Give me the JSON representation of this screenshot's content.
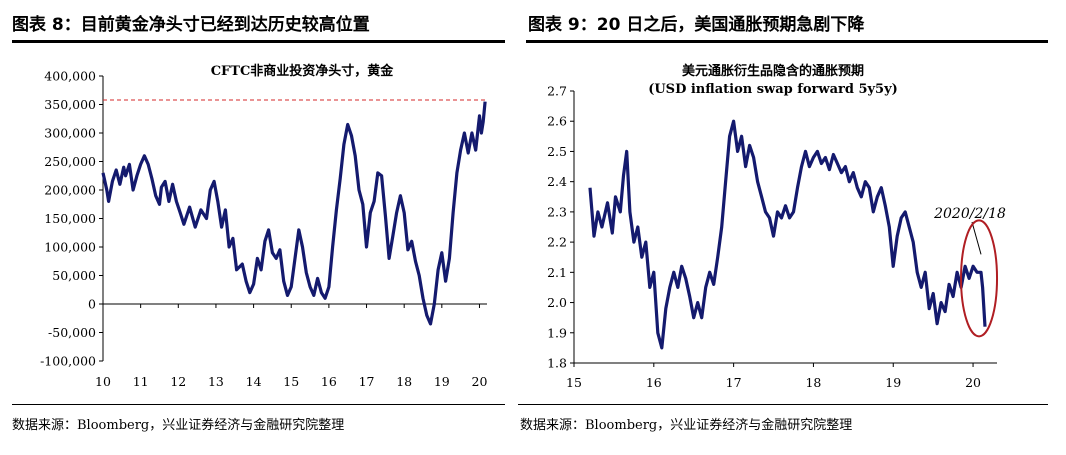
{
  "left": {
    "figure_title": "图表 8：目前黄金净头寸已经到达历史较高位置",
    "source": "数据来源：Bloomberg，兴业证券经济与金融研究院整理"
  },
  "right": {
    "figure_title": "图表 9：20 日之后，美国通胀预期急剧下降",
    "source": "数据来源：Bloomberg，兴业证券经济与金融研究院整理"
  },
  "colors": {
    "line": "#141a6e",
    "reference": "#d62728",
    "ellipse": "#b01e23",
    "axis": "#000000"
  },
  "chart_data": [
    {
      "type": "line",
      "title": "CFTC非商业投资净头寸，黄金",
      "xlabel": "",
      "ylabel": "",
      "ylim": [
        -100000,
        400000
      ],
      "yticks": [
        400000,
        350000,
        300000,
        250000,
        200000,
        150000,
        100000,
        50000,
        0,
        -50000,
        -100000
      ],
      "ytick_labels": [
        "400,000",
        "350,000",
        "300,000",
        "250,000",
        "200,000",
        "150,000",
        "100,000",
        "50,000",
        "0",
        "-50,000",
        "-100,000"
      ],
      "xlim": [
        10,
        20.2
      ],
      "xticks": [
        10,
        11,
        12,
        13,
        14,
        15,
        16,
        17,
        18,
        19,
        20
      ],
      "xtick_labels": [
        "10",
        "11",
        "12",
        "13",
        "14",
        "15",
        "16",
        "17",
        "18",
        "19",
        "20"
      ],
      "reference_line": {
        "y": 358000,
        "style": "dashed"
      },
      "grid": false,
      "legend": "none",
      "series": [
        {
          "points": [
            [
              10.0,
              230000
            ],
            [
              10.1,
              200000
            ],
            [
              10.15,
              180000
            ],
            [
              10.25,
              215000
            ],
            [
              10.35,
              235000
            ],
            [
              10.45,
              210000
            ],
            [
              10.55,
              240000
            ],
            [
              10.6,
              225000
            ],
            [
              10.7,
              245000
            ],
            [
              10.8,
              200000
            ],
            [
              10.9,
              225000
            ],
            [
              11.0,
              245000
            ],
            [
              11.1,
              260000
            ],
            [
              11.2,
              245000
            ],
            [
              11.3,
              220000
            ],
            [
              11.4,
              190000
            ],
            [
              11.5,
              175000
            ],
            [
              11.55,
              205000
            ],
            [
              11.65,
              215000
            ],
            [
              11.75,
              180000
            ],
            [
              11.85,
              210000
            ],
            [
              11.95,
              180000
            ],
            [
              12.05,
              160000
            ],
            [
              12.15,
              140000
            ],
            [
              12.3,
              170000
            ],
            [
              12.45,
              135000
            ],
            [
              12.6,
              165000
            ],
            [
              12.75,
              150000
            ],
            [
              12.85,
              200000
            ],
            [
              12.95,
              215000
            ],
            [
              13.05,
              180000
            ],
            [
              13.15,
              135000
            ],
            [
              13.25,
              165000
            ],
            [
              13.35,
              100000
            ],
            [
              13.45,
              115000
            ],
            [
              13.55,
              60000
            ],
            [
              13.7,
              70000
            ],
            [
              13.8,
              40000
            ],
            [
              13.9,
              20000
            ],
            [
              14.0,
              35000
            ],
            [
              14.1,
              80000
            ],
            [
              14.2,
              60000
            ],
            [
              14.3,
              110000
            ],
            [
              14.4,
              130000
            ],
            [
              14.5,
              90000
            ],
            [
              14.6,
              80000
            ],
            [
              14.7,
              95000
            ],
            [
              14.8,
              40000
            ],
            [
              14.9,
              15000
            ],
            [
              15.0,
              30000
            ],
            [
              15.1,
              80000
            ],
            [
              15.2,
              130000
            ],
            [
              15.3,
              100000
            ],
            [
              15.4,
              55000
            ],
            [
              15.5,
              30000
            ],
            [
              15.6,
              15000
            ],
            [
              15.7,
              45000
            ],
            [
              15.8,
              20000
            ],
            [
              15.9,
              10000
            ],
            [
              16.0,
              30000
            ],
            [
              16.1,
              100000
            ],
            [
              16.2,
              165000
            ],
            [
              16.3,
              220000
            ],
            [
              16.4,
              280000
            ],
            [
              16.5,
              315000
            ],
            [
              16.6,
              295000
            ],
            [
              16.7,
              260000
            ],
            [
              16.8,
              200000
            ],
            [
              16.9,
              175000
            ],
            [
              17.0,
              100000
            ],
            [
              17.1,
              160000
            ],
            [
              17.2,
              180000
            ],
            [
              17.3,
              230000
            ],
            [
              17.4,
              225000
            ],
            [
              17.5,
              155000
            ],
            [
              17.6,
              80000
            ],
            [
              17.7,
              120000
            ],
            [
              17.8,
              160000
            ],
            [
              17.9,
              190000
            ],
            [
              18.0,
              160000
            ],
            [
              18.1,
              95000
            ],
            [
              18.2,
              110000
            ],
            [
              18.3,
              75000
            ],
            [
              18.4,
              50000
            ],
            [
              18.5,
              10000
            ],
            [
              18.6,
              -20000
            ],
            [
              18.7,
              -35000
            ],
            [
              18.8,
              0
            ],
            [
              18.9,
              60000
            ],
            [
              19.0,
              90000
            ],
            [
              19.1,
              40000
            ],
            [
              19.2,
              80000
            ],
            [
              19.3,
              160000
            ],
            [
              19.4,
              230000
            ],
            [
              19.5,
              270000
            ],
            [
              19.6,
              300000
            ],
            [
              19.7,
              265000
            ],
            [
              19.8,
              300000
            ],
            [
              19.9,
              270000
            ],
            [
              20.0,
              330000
            ],
            [
              20.05,
              300000
            ],
            [
              20.1,
              320000
            ],
            [
              20.15,
              355000
            ]
          ]
        }
      ]
    },
    {
      "type": "line",
      "title": "美元通胀衍生品隐含的通胀预期",
      "subtitle": "(USD inflation swap forward 5y5y)",
      "xlabel": "",
      "ylabel": "",
      "ylim": [
        1.8,
        2.7
      ],
      "yticks": [
        2.7,
        2.6,
        2.5,
        2.4,
        2.3,
        2.2,
        2.1,
        2.0,
        1.9,
        1.8
      ],
      "ytick_labels": [
        "2.7",
        "2.6",
        "2.5",
        "2.4",
        "2.3",
        "2.2",
        "2.1",
        "2.0",
        "1.9",
        "1.8"
      ],
      "xlim": [
        15.0,
        20.3
      ],
      "xticks": [
        15,
        16,
        17,
        18,
        19,
        20
      ],
      "xtick_labels": [
        "15",
        "16",
        "17",
        "18",
        "19",
        "20"
      ],
      "annotation": {
        "text": "2020/2/18",
        "x": 20.15,
        "y": 2.1
      },
      "grid": false,
      "legend": "none",
      "series": [
        {
          "points": [
            [
              15.2,
              2.38
            ],
            [
              15.25,
              2.22
            ],
            [
              15.3,
              2.3
            ],
            [
              15.35,
              2.25
            ],
            [
              15.42,
              2.33
            ],
            [
              15.48,
              2.23
            ],
            [
              15.52,
              2.35
            ],
            [
              15.58,
              2.3
            ],
            [
              15.62,
              2.42
            ],
            [
              15.66,
              2.5
            ],
            [
              15.7,
              2.3
            ],
            [
              15.75,
              2.2
            ],
            [
              15.8,
              2.25
            ],
            [
              15.85,
              2.15
            ],
            [
              15.9,
              2.2
            ],
            [
              15.95,
              2.05
            ],
            [
              16.0,
              2.1
            ],
            [
              16.05,
              1.9
            ],
            [
              16.1,
              1.85
            ],
            [
              16.15,
              1.98
            ],
            [
              16.2,
              2.05
            ],
            [
              16.25,
              2.1
            ],
            [
              16.3,
              2.05
            ],
            [
              16.35,
              2.12
            ],
            [
              16.4,
              2.08
            ],
            [
              16.45,
              2.02
            ],
            [
              16.5,
              1.95
            ],
            [
              16.55,
              2.0
            ],
            [
              16.6,
              1.95
            ],
            [
              16.65,
              2.05
            ],
            [
              16.7,
              2.1
            ],
            [
              16.75,
              2.06
            ],
            [
              16.8,
              2.15
            ],
            [
              16.85,
              2.25
            ],
            [
              16.9,
              2.4
            ],
            [
              16.95,
              2.55
            ],
            [
              17.0,
              2.6
            ],
            [
              17.05,
              2.5
            ],
            [
              17.1,
              2.55
            ],
            [
              17.15,
              2.45
            ],
            [
              17.2,
              2.52
            ],
            [
              17.25,
              2.48
            ],
            [
              17.3,
              2.4
            ],
            [
              17.35,
              2.35
            ],
            [
              17.4,
              2.3
            ],
            [
              17.45,
              2.28
            ],
            [
              17.5,
              2.22
            ],
            [
              17.55,
              2.3
            ],
            [
              17.6,
              2.28
            ],
            [
              17.65,
              2.32
            ],
            [
              17.7,
              2.28
            ],
            [
              17.75,
              2.3
            ],
            [
              17.8,
              2.38
            ],
            [
              17.85,
              2.45
            ],
            [
              17.9,
              2.5
            ],
            [
              17.95,
              2.45
            ],
            [
              18.0,
              2.48
            ],
            [
              18.05,
              2.5
            ],
            [
              18.1,
              2.46
            ],
            [
              18.15,
              2.48
            ],
            [
              18.2,
              2.44
            ],
            [
              18.25,
              2.49
            ],
            [
              18.3,
              2.46
            ],
            [
              18.35,
              2.43
            ],
            [
              18.4,
              2.45
            ],
            [
              18.45,
              2.4
            ],
            [
              18.5,
              2.43
            ],
            [
              18.55,
              2.38
            ],
            [
              18.6,
              2.35
            ],
            [
              18.65,
              2.4
            ],
            [
              18.7,
              2.38
            ],
            [
              18.75,
              2.3
            ],
            [
              18.8,
              2.35
            ],
            [
              18.85,
              2.38
            ],
            [
              18.9,
              2.32
            ],
            [
              18.95,
              2.25
            ],
            [
              19.0,
              2.12
            ],
            [
              19.05,
              2.22
            ],
            [
              19.1,
              2.28
            ],
            [
              19.15,
              2.3
            ],
            [
              19.2,
              2.25
            ],
            [
              19.25,
              2.2
            ],
            [
              19.3,
              2.1
            ],
            [
              19.35,
              2.05
            ],
            [
              19.4,
              2.1
            ],
            [
              19.45,
              1.98
            ],
            [
              19.5,
              2.03
            ],
            [
              19.55,
              1.93
            ],
            [
              19.6,
              2.0
            ],
            [
              19.65,
              1.97
            ],
            [
              19.7,
              2.06
            ],
            [
              19.75,
              2.02
            ],
            [
              19.8,
              2.1
            ],
            [
              19.85,
              2.05
            ],
            [
              19.9,
              2.12
            ],
            [
              19.95,
              2.08
            ],
            [
              20.0,
              2.12
            ],
            [
              20.05,
              2.1
            ],
            [
              20.1,
              2.1
            ],
            [
              20.12,
              2.05
            ],
            [
              20.15,
              1.92
            ]
          ]
        }
      ]
    }
  ]
}
